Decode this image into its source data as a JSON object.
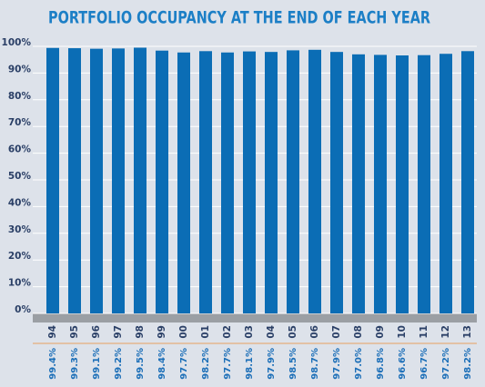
{
  "chart_data": {
    "type": "bar",
    "title": "PORTFOLIO OCCUPANCY AT THE END OF EACH YEAR",
    "categories": [
      "94",
      "95",
      "96",
      "97",
      "98",
      "99",
      "00",
      "01",
      "02",
      "03",
      "04",
      "05",
      "06",
      "07",
      "08",
      "09",
      "10",
      "11",
      "12",
      "13"
    ],
    "values": [
      99.4,
      99.3,
      99.1,
      99.2,
      99.5,
      98.4,
      97.7,
      98.2,
      97.7,
      98.1,
      97.9,
      98.5,
      98.7,
      97.9,
      97.0,
      96.8,
      96.6,
      96.7,
      97.2,
      98.2
    ],
    "value_labels": [
      "99.4%",
      "99.3%",
      "99.1%",
      "99.2%",
      "99.5%",
      "98.4%",
      "97.7%",
      "98.2%",
      "97.7%",
      "98.1%",
      "97.9%",
      "98.5%",
      "98.7%",
      "97.9%",
      "97.0%",
      "96.8%",
      "96.6%",
      "96.7%",
      "97.2%",
      "98.2%"
    ],
    "color": "#0b6db5",
    "ylim": [
      0,
      100
    ],
    "yticks": [
      {
        "value": 0,
        "label": "0%"
      },
      {
        "value": 10,
        "label": "10%"
      },
      {
        "value": 20,
        "label": "20%"
      },
      {
        "value": 30,
        "label": "30%"
      },
      {
        "value": 40,
        "label": "40%"
      },
      {
        "value": 50,
        "label": "50%"
      },
      {
        "value": 60,
        "label": "60%"
      },
      {
        "value": 70,
        "label": "70%"
      },
      {
        "value": 80,
        "label": "80%"
      },
      {
        "value": 90,
        "label": "90%"
      },
      {
        "value": 100,
        "label": "100%"
      }
    ],
    "grid": true
  }
}
